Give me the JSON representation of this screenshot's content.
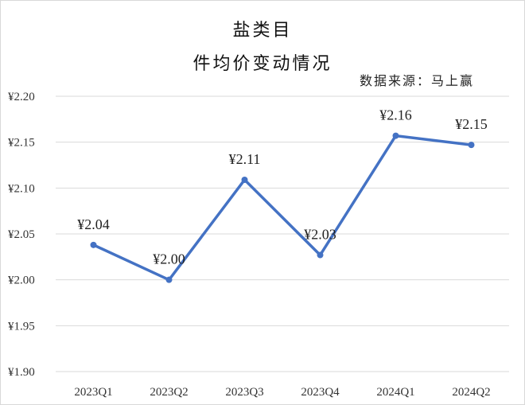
{
  "chart_data": {
    "type": "line",
    "title": "盐类目 件均价变动情况",
    "title_lines": [
      "盐类目",
      "件均价变动情况"
    ],
    "source": "数据来源：马上赢",
    "categories": [
      "2023Q1",
      "2023Q2",
      "2023Q3",
      "2023Q4",
      "2024Q1",
      "2024Q2"
    ],
    "series": [
      {
        "name": "件均价",
        "values": [
          2.04,
          2.0,
          2.11,
          2.03,
          2.16,
          2.15
        ],
        "labels": [
          "¥2.04",
          "¥2.00",
          "¥2.11",
          "¥2.03",
          "¥2.16",
          "¥2.15"
        ],
        "color": "#4472C4"
      }
    ],
    "xlabel": "",
    "ylabel": "",
    "ylim": [
      1.9,
      2.2
    ],
    "yticks": [
      "¥2.20",
      "¥2.15",
      "¥2.10",
      "¥2.05",
      "¥2.00",
      "¥1.95",
      "¥1.90"
    ],
    "grid": true,
    "gridline_color": "#d9d9d9",
    "legend": "none"
  }
}
